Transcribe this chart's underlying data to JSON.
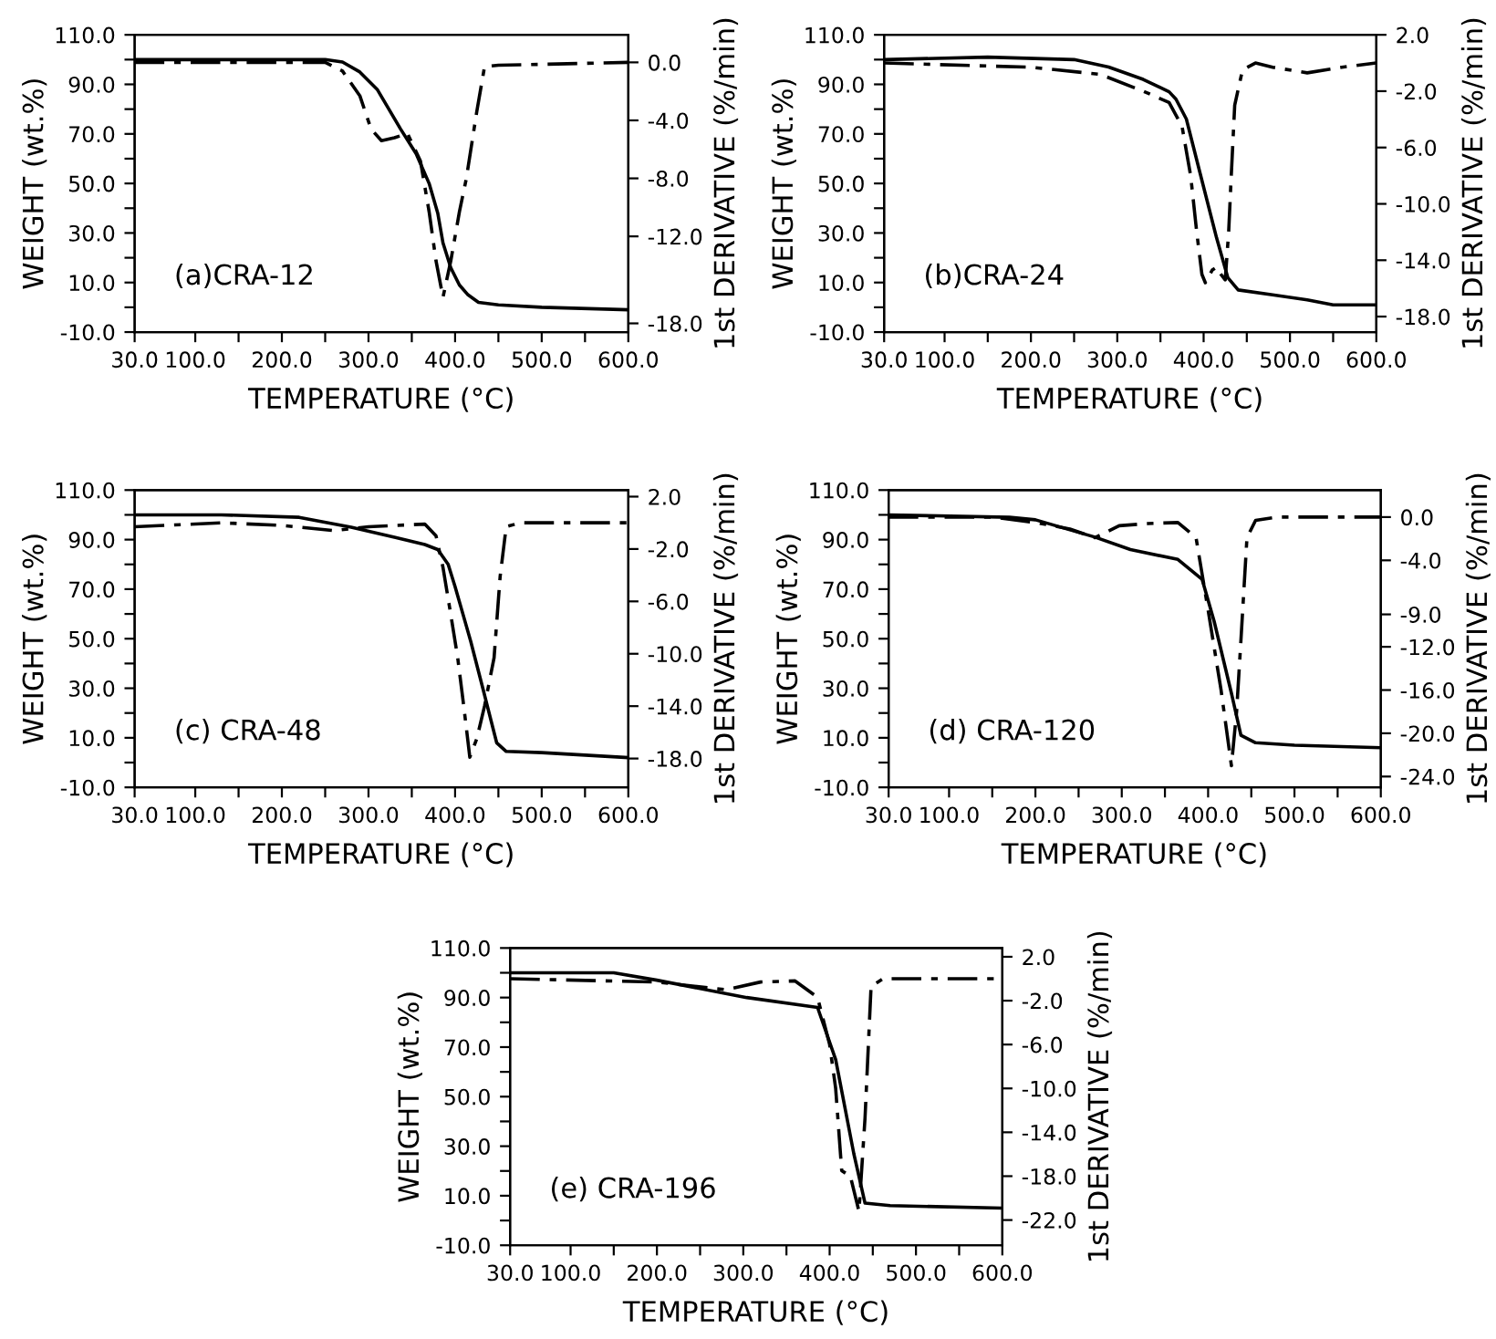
{
  "chart_data": [
    {
      "type": "line",
      "xlabel": "TEMPERATURE (°C)",
      "ylabel": "WEIGHT (wt.%)",
      "y2label": "1st DERIVATIVE (%/min)",
      "annotations": [
        "(a)CRA-12"
      ],
      "xlim": [
        30,
        600
      ],
      "ylim": [
        -10,
        110
      ],
      "y2lim": [
        -18.6,
        1.9
      ],
      "xticks": [
        {
          "value": 30,
          "label": "30.0"
        },
        {
          "value": 100,
          "label": "100.0"
        },
        {
          "value": 150,
          "label": null
        },
        {
          "value": 200,
          "label": "200.0"
        },
        {
          "value": 250,
          "label": null
        },
        {
          "value": 300,
          "label": "300.0"
        },
        {
          "value": 350,
          "label": null
        },
        {
          "value": 400,
          "label": "400.0"
        },
        {
          "value": 450,
          "label": null
        },
        {
          "value": 500,
          "label": "500.0"
        },
        {
          "value": 550,
          "label": null
        },
        {
          "value": 600,
          "label": "600.0"
        }
      ],
      "yticks": [
        {
          "value": -10,
          "label": "-10.0"
        },
        {
          "value": 0,
          "label": null
        },
        {
          "value": 10,
          "label": "10.0"
        },
        {
          "value": 20,
          "label": null
        },
        {
          "value": 30,
          "label": "30.0"
        },
        {
          "value": 40,
          "label": null
        },
        {
          "value": 50,
          "label": "50.0"
        },
        {
          "value": 60,
          "label": null
        },
        {
          "value": 70,
          "label": "70.0"
        },
        {
          "value": 80,
          "label": null
        },
        {
          "value": 90,
          "label": "90.0"
        },
        {
          "value": 100,
          "label": null
        },
        {
          "value": 110,
          "label": "110.0"
        }
      ],
      "y2ticks": [
        {
          "value": 0,
          "label": "0.0"
        },
        {
          "value": -4,
          "label": "-4.0"
        },
        {
          "value": -8,
          "label": "-8.0"
        },
        {
          "value": -12,
          "label": "-12.0"
        },
        {
          "value": -18,
          "label": "-18.0"
        }
      ],
      "series": [
        {
          "color": "#000000",
          "line_style": "solid",
          "x": [
            30,
            250,
            270,
            290,
            310,
            337,
            355,
            370,
            380,
            386,
            395,
            405,
            415,
            427,
            450,
            500,
            600
          ],
          "values": [
            100,
            100,
            99,
            95,
            88,
            72,
            62,
            50,
            38,
            26,
            16,
            9,
            5,
            2,
            1,
            0,
            -1
          ]
        },
        {
          "color": "#000000",
          "line_style": "dashed",
          "axis": "y2",
          "x": [
            30,
            250,
            270,
            290,
            303,
            315,
            330,
            345,
            360,
            370,
            378,
            386,
            395,
            405,
            413,
            425,
            434,
            450,
            600
          ],
          "values": [
            0,
            0,
            -0.6,
            -2.3,
            -4.6,
            -5.4,
            -5.2,
            -4.9,
            -6.8,
            -10.3,
            -13.7,
            -16.2,
            -13.7,
            -10.3,
            -8,
            -3.4,
            -0.3,
            -0.2,
            0
          ]
        }
      ]
    },
    {
      "type": "line",
      "xlabel": "TEMPERATURE (°C)",
      "ylabel": "WEIGHT (wt.%)",
      "y2label": "1st DERIVATIVE (%/min)",
      "annotations": [
        "(b)CRA-24"
      ],
      "xlim": [
        30,
        600
      ],
      "ylim": [
        -10,
        110
      ],
      "y2lim": [
        -19.1,
        2.0
      ],
      "xticks": [
        {
          "value": 30,
          "label": "30.0"
        },
        {
          "value": 100,
          "label": "100.0"
        },
        {
          "value": 150,
          "label": null
        },
        {
          "value": 200,
          "label": "200.0"
        },
        {
          "value": 250,
          "label": null
        },
        {
          "value": 300,
          "label": "300.0"
        },
        {
          "value": 350,
          "label": null
        },
        {
          "value": 400,
          "label": "400.0"
        },
        {
          "value": 450,
          "label": null
        },
        {
          "value": 500,
          "label": "500.0"
        },
        {
          "value": 550,
          "label": null
        },
        {
          "value": 600,
          "label": "600.0"
        }
      ],
      "yticks": [
        {
          "value": -10,
          "label": "-10.0"
        },
        {
          "value": 0,
          "label": null
        },
        {
          "value": 10,
          "label": "10.0"
        },
        {
          "value": 20,
          "label": null
        },
        {
          "value": 30,
          "label": "30.0"
        },
        {
          "value": 40,
          "label": null
        },
        {
          "value": 50,
          "label": "50.0"
        },
        {
          "value": 60,
          "label": null
        },
        {
          "value": 70,
          "label": "70.0"
        },
        {
          "value": 80,
          "label": null
        },
        {
          "value": 90,
          "label": "90.0"
        },
        {
          "value": 100,
          "label": null
        },
        {
          "value": 110,
          "label": "110.0"
        }
      ],
      "y2ticks": [
        {
          "value": 2,
          "label": "2.0"
        },
        {
          "value": -2,
          "label": "-2.0"
        },
        {
          "value": -6,
          "label": "-6.0"
        },
        {
          "value": -10,
          "label": "-10.0"
        },
        {
          "value": -14,
          "label": "-14.0"
        },
        {
          "value": -18,
          "label": "-18.0"
        }
      ],
      "series": [
        {
          "color": "#000000",
          "line_style": "solid",
          "x": [
            30,
            150,
            250,
            290,
            330,
            360,
            368,
            380,
            396,
            415,
            428,
            440,
            480,
            520,
            550,
            600
          ],
          "values": [
            100,
            101,
            100,
            97,
            92,
            87,
            84,
            76,
            54,
            28,
            12,
            7,
            5,
            3,
            1,
            1
          ]
        },
        {
          "color": "#000000",
          "line_style": "dashed",
          "axis": "y2",
          "x": [
            30,
            200,
            280,
            330,
            360,
            375,
            385,
            392,
            398,
            402,
            410,
            415,
            420,
            425,
            429,
            432,
            436,
            445,
            460,
            480,
            520,
            560,
            600
          ],
          "values": [
            0,
            -0.3,
            -0.8,
            -2,
            -2.8,
            -4.5,
            -8,
            -12,
            -15,
            -15.6,
            -14.7,
            -14.5,
            -15,
            -15.4,
            -12,
            -8,
            -3,
            -0.5,
            0,
            -0.3,
            -0.7,
            -0.3,
            0
          ]
        }
      ]
    },
    {
      "type": "line",
      "xlabel": "TEMPERATURE (°C)",
      "ylabel": "WEIGHT (wt.%)",
      "y2label": "1st DERIVATIVE (%/min)",
      "annotations": [
        "(c) CRA-48"
      ],
      "xlim": [
        30,
        600
      ],
      "ylim": [
        -10,
        110
      ],
      "y2lim": [
        -20.2,
        2.5
      ],
      "xticks": [
        {
          "value": 30,
          "label": "30.0"
        },
        {
          "value": 100,
          "label": "100.0"
        },
        {
          "value": 150,
          "label": null
        },
        {
          "value": 200,
          "label": "200.0"
        },
        {
          "value": 250,
          "label": null
        },
        {
          "value": 300,
          "label": "300.0"
        },
        {
          "value": 350,
          "label": null
        },
        {
          "value": 400,
          "label": "400.0"
        },
        {
          "value": 450,
          "label": null
        },
        {
          "value": 500,
          "label": "500.0"
        },
        {
          "value": 550,
          "label": null
        },
        {
          "value": 600,
          "label": "600.0"
        }
      ],
      "yticks": [
        {
          "value": -10,
          "label": "-10.0"
        },
        {
          "value": 0,
          "label": null
        },
        {
          "value": 10,
          "label": "10.0"
        },
        {
          "value": 20,
          "label": null
        },
        {
          "value": 30,
          "label": "30.0"
        },
        {
          "value": 40,
          "label": null
        },
        {
          "value": 50,
          "label": "50.0"
        },
        {
          "value": 60,
          "label": null
        },
        {
          "value": 70,
          "label": "70.0"
        },
        {
          "value": 80,
          "label": null
        },
        {
          "value": 90,
          "label": "90.0"
        },
        {
          "value": 100,
          "label": null
        },
        {
          "value": 110,
          "label": "110.0"
        }
      ],
      "y2ticks": [
        {
          "value": 2,
          "label": "2.0"
        },
        {
          "value": -2,
          "label": "-2.0"
        },
        {
          "value": -6,
          "label": "-6.0"
        },
        {
          "value": -10,
          "label": "-10.0"
        },
        {
          "value": -14,
          "label": "-14.0"
        },
        {
          "value": -18,
          "label": "-18.0"
        }
      ],
      "series": [
        {
          "color": "#000000",
          "line_style": "solid",
          "x": [
            30,
            130,
            220,
            280,
            330,
            365,
            380,
            392,
            400,
            418,
            432,
            448,
            459,
            500,
            600
          ],
          "values": [
            100,
            100,
            99,
            95,
            91,
            88,
            86,
            80,
            71,
            49,
            30,
            8,
            4.5,
            4,
            2
          ]
        },
        {
          "color": "#000000",
          "line_style": "dashed",
          "axis": "y2",
          "x": [
            30,
            130,
            200,
            260,
            300,
            365,
            378,
            386,
            395,
            403,
            410,
            417,
            425,
            434,
            445,
            452,
            459,
            475,
            600
          ],
          "values": [
            -0.3,
            0,
            -0.2,
            -0.6,
            -0.3,
            -0.1,
            -1,
            -3.4,
            -7,
            -10.3,
            -14,
            -17.9,
            -16.5,
            -14,
            -10.3,
            -4.1,
            -0.3,
            0,
            0
          ]
        }
      ]
    },
    {
      "type": "line",
      "xlabel": "TEMPERATURE (°C)",
      "ylabel": "WEIGHT (wt.%)",
      "y2label": "1st DERIVATIVE (%/min)",
      "annotations": [
        "(d) CRA-120"
      ],
      "xlim": [
        30,
        600
      ],
      "ylim": [
        -10,
        110
      ],
      "y2lim": [
        -25.0,
        2.5
      ],
      "xticks": [
        {
          "value": 30,
          "label": "30.0"
        },
        {
          "value": 100,
          "label": "100.0"
        },
        {
          "value": 150,
          "label": null
        },
        {
          "value": 200,
          "label": "200.0"
        },
        {
          "value": 250,
          "label": null
        },
        {
          "value": 300,
          "label": "300.0"
        },
        {
          "value": 350,
          "label": null
        },
        {
          "value": 400,
          "label": "400.0"
        },
        {
          "value": 450,
          "label": null
        },
        {
          "value": 500,
          "label": "500.0"
        },
        {
          "value": 550,
          "label": null
        },
        {
          "value": 600,
          "label": "600.0"
        }
      ],
      "yticks": [
        {
          "value": -10,
          "label": "-10.0"
        },
        {
          "value": 0,
          "label": null
        },
        {
          "value": 10,
          "label": "10.0"
        },
        {
          "value": 20,
          "label": null
        },
        {
          "value": 30,
          "label": "30.0"
        },
        {
          "value": 40,
          "label": null
        },
        {
          "value": 50,
          "label": "50.0"
        },
        {
          "value": 60,
          "label": null
        },
        {
          "value": 70,
          "label": "70.0"
        },
        {
          "value": 80,
          "label": null
        },
        {
          "value": 90,
          "label": "90.0"
        },
        {
          "value": 100,
          "label": null
        },
        {
          "value": 110,
          "label": "110.0"
        }
      ],
      "y2ticks": [
        {
          "value": 0,
          "label": "0.0"
        },
        {
          "value": -4,
          "label": "-4.0"
        },
        {
          "value": -9,
          "label": "-9.0"
        },
        {
          "value": -12,
          "label": "-12.0"
        },
        {
          "value": -16,
          "label": "-16.0"
        },
        {
          "value": -20,
          "label": "-20.0"
        },
        {
          "value": -24,
          "label": "-24.0"
        }
      ],
      "series": [
        {
          "color": "#000000",
          "line_style": "solid",
          "x": [
            30,
            170,
            200,
            269,
            310,
            365,
            393,
            407,
            427,
            438,
            455,
            500,
            600
          ],
          "values": [
            100,
            99,
            98,
            91,
            86,
            82,
            74,
            57,
            28,
            11,
            8,
            7,
            6
          ]
        },
        {
          "color": "#000000",
          "line_style": "dashed",
          "axis": "y2",
          "x": [
            30,
            150,
            200,
            240,
            269,
            297,
            330,
            365,
            386,
            400,
            415,
            427,
            433,
            438,
            445,
            455,
            480,
            600
          ],
          "values": [
            0,
            0,
            -0.5,
            -1.1,
            -1.9,
            -0.8,
            -0.6,
            -0.5,
            -1.9,
            -8.6,
            -16,
            -23,
            -18,
            -11.4,
            -1.9,
            -0.3,
            0,
            0
          ]
        }
      ]
    },
    {
      "type": "line",
      "xlabel": "TEMPERATURE (°C)",
      "ylabel": "WEIGHT (wt.%)",
      "y2label": "1st DERIVATIVE (%/min)",
      "annotations": [
        "(e) CRA-196"
      ],
      "xlim": [
        30,
        600
      ],
      "ylim": [
        -10,
        110
      ],
      "y2lim": [
        -24.3,
        2.8
      ],
      "xticks": [
        {
          "value": 30,
          "label": "30.0"
        },
        {
          "value": 100,
          "label": "100.0"
        },
        {
          "value": 150,
          "label": null
        },
        {
          "value": 200,
          "label": "200.0"
        },
        {
          "value": 250,
          "label": null
        },
        {
          "value": 300,
          "label": "300.0"
        },
        {
          "value": 350,
          "label": null
        },
        {
          "value": 400,
          "label": "400.0"
        },
        {
          "value": 450,
          "label": null
        },
        {
          "value": 500,
          "label": "500.0"
        },
        {
          "value": 550,
          "label": null
        },
        {
          "value": 600,
          "label": "600.0"
        }
      ],
      "yticks": [
        {
          "value": -10,
          "label": "-10.0"
        },
        {
          "value": 0,
          "label": null
        },
        {
          "value": 10,
          "label": "10.0"
        },
        {
          "value": 20,
          "label": null
        },
        {
          "value": 30,
          "label": "30.0"
        },
        {
          "value": 40,
          "label": null
        },
        {
          "value": 50,
          "label": "50.0"
        },
        {
          "value": 60,
          "label": null
        },
        {
          "value": 70,
          "label": "70.0"
        },
        {
          "value": 80,
          "label": null
        },
        {
          "value": 90,
          "label": "90.0"
        },
        {
          "value": 100,
          "label": null
        },
        {
          "value": 110,
          "label": "110.0"
        }
      ],
      "y2ticks": [
        {
          "value": 2,
          "label": "2.0"
        },
        {
          "value": -2,
          "label": "-2.0"
        },
        {
          "value": -6,
          "label": "-6.0"
        },
        {
          "value": -10,
          "label": "-10.0"
        },
        {
          "value": -14,
          "label": "-14.0"
        },
        {
          "value": -18,
          "label": "-18.0"
        },
        {
          "value": -22,
          "label": "-22.0"
        }
      ],
      "series": [
        {
          "color": "#000000",
          "line_style": "solid",
          "x": [
            30,
            150,
            200,
            304,
            386,
            407,
            428,
            441,
            470,
            600
          ],
          "values": [
            100,
            100,
            97,
            90,
            86,
            65,
            27,
            7,
            6,
            5
          ]
        },
        {
          "color": "#000000",
          "line_style": "dashed",
          "axis": "y2",
          "x": [
            30,
            200,
            280,
            320,
            360,
            386,
            400,
            407,
            414,
            424,
            434,
            441,
            448,
            462,
            600
          ],
          "values": [
            0,
            -0.3,
            -1.0,
            -0.3,
            -0.2,
            -1.7,
            -6,
            -10,
            -17.5,
            -18,
            -21.2,
            -12.7,
            -0.7,
            0,
            0
          ]
        }
      ]
    }
  ]
}
